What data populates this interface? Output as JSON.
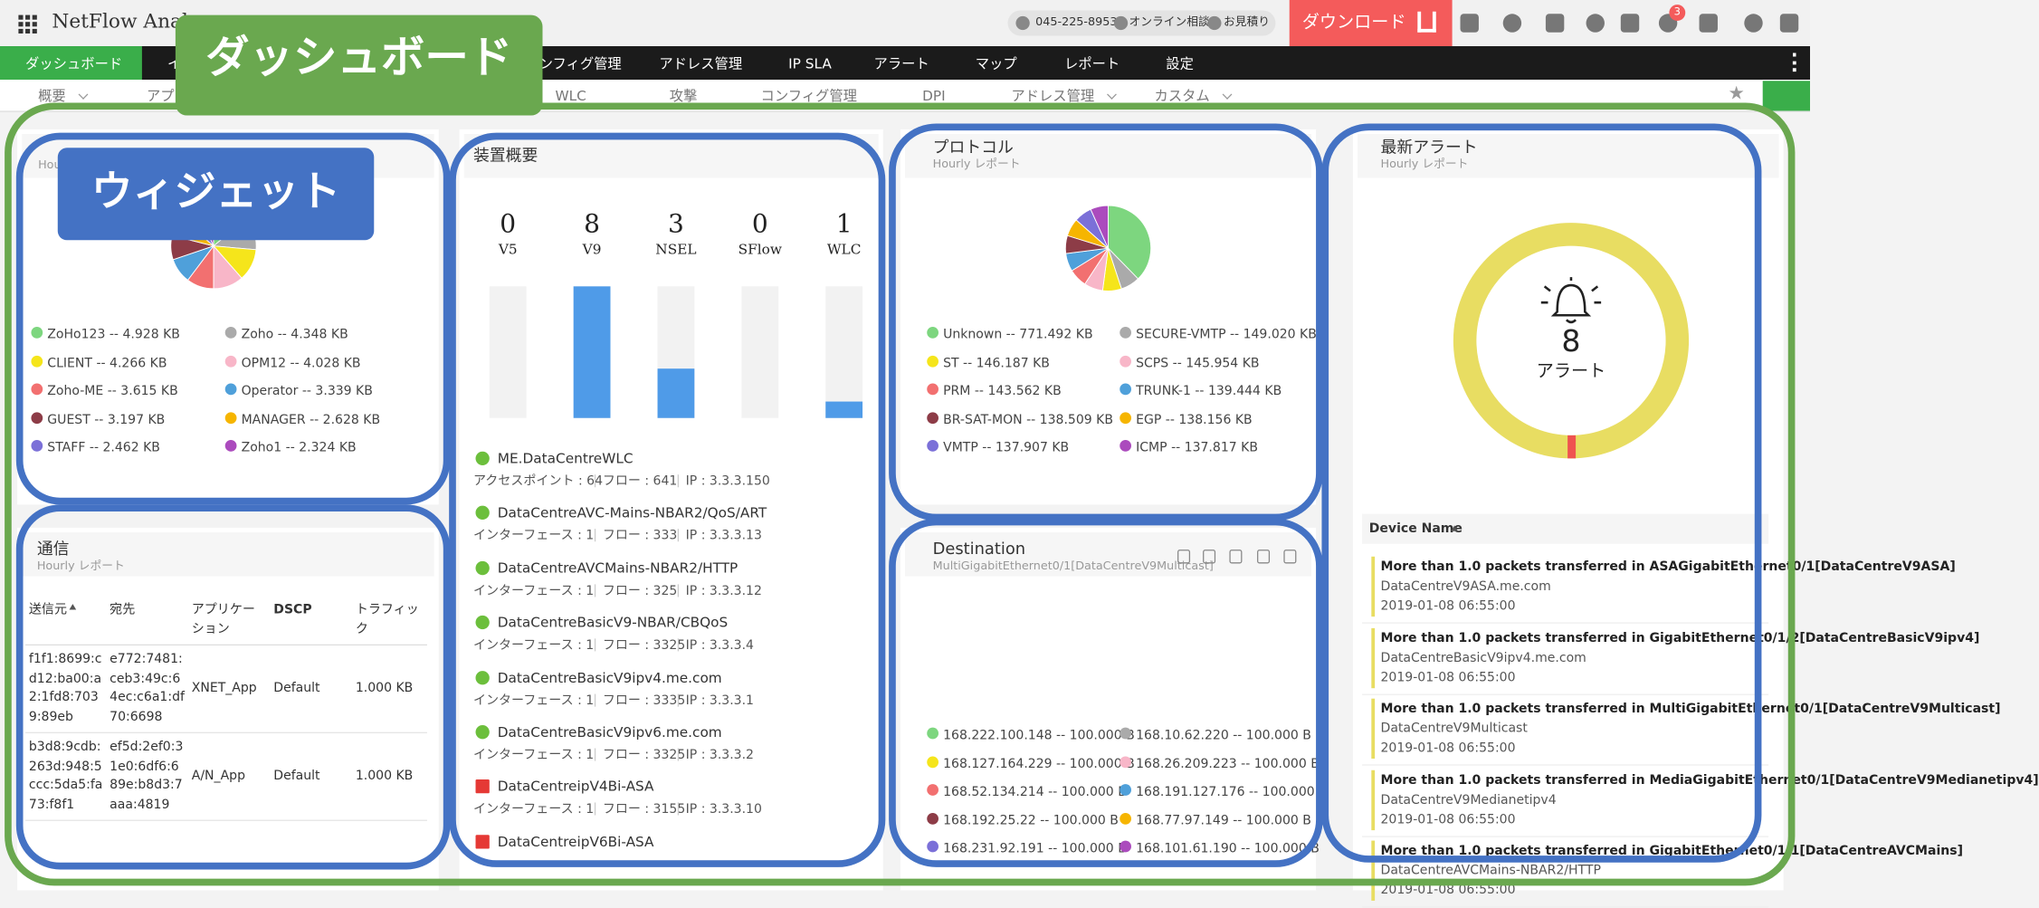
{
  "header": {
    "brand": "NetFlow Analyzer",
    "phone": "045-225-8953",
    "consult": "オンライン相談",
    "quote": "お見積り",
    "download": "ダウンロード",
    "badge": 3
  },
  "nav": [
    "ダッシュボード",
    "インベントリ",
    "コンフィグ管理",
    "アドレス管理",
    "IP SLA",
    "アラート",
    "マップ",
    "レポート",
    "設定"
  ],
  "subnav": [
    "概要",
    "アプリケーション",
    "WLC",
    "攻撃",
    "コンフィグ管理",
    "DPI",
    "アドレス管理",
    "カスタム"
  ],
  "callouts": {
    "dashboard": "ダッシュボード",
    "widget": "ウィジェット"
  },
  "widgets": {
    "application": {
      "subtitle": "Hourly レポート",
      "series": [
        {
          "name": "ZoHo123 -- 4.928 KB",
          "color": "#7dd67f",
          "value": 4.928
        },
        {
          "name": "Zoho -- 4.348 KB",
          "color": "#aaaaaa",
          "value": 4.348
        },
        {
          "name": "CLIENT -- 4.266 KB",
          "color": "#f5e51b",
          "value": 4.266
        },
        {
          "name": "OPM12 -- 4.028 KB",
          "color": "#f8b6c8",
          "value": 4.028
        },
        {
          "name": "Zoho-ME -- 3.615 KB",
          "color": "#f27070",
          "value": 3.615
        },
        {
          "name": "Operator -- 3.339 KB",
          "color": "#4fa0da",
          "value": 3.339
        },
        {
          "name": "GUEST -- 3.197 KB",
          "color": "#8d3c47",
          "value": 3.197
        },
        {
          "name": "MANAGER -- 2.628 KB",
          "color": "#f6b500",
          "value": 2.628
        },
        {
          "name": "STAFF -- 2.462 KB",
          "color": "#7b70d8",
          "value": 2.462
        },
        {
          "name": "Zoho1 -- 2.324 KB",
          "color": "#ab4bbd",
          "value": 2.324
        }
      ]
    },
    "devices": {
      "title": "装置概要",
      "ylim": [
        0,
        8
      ],
      "counts": [
        {
          "label": "V5",
          "value": 0
        },
        {
          "label": "V9",
          "value": 8
        },
        {
          "label": "NSEL",
          "value": 3
        },
        {
          "label": "SFlow",
          "value": 0
        },
        {
          "label": "WLC",
          "value": 1
        }
      ],
      "list": [
        {
          "name": "ME.DataCentreWLC",
          "icon": "globe",
          "detail": [
            "アクセスポイント : 64",
            "フロー : 641",
            "IP : 3.3.3.150"
          ]
        },
        {
          "name": "DataCentreAVC-Mains-NBAR2/QoS/ART",
          "icon": "globe",
          "detail": [
            "インターフェース : 1",
            "フロー : 333",
            "IP : 3.3.3.13"
          ]
        },
        {
          "name": "DataCentreAVCMains-NBAR2/HTTP",
          "icon": "globe",
          "detail": [
            "インターフェース : 1",
            "フロー : 325",
            "IP : 3.3.3.12"
          ]
        },
        {
          "name": "DataCentreBasicV9-NBAR/CBQoS",
          "icon": "globe",
          "detail": [
            "インターフェース : 1",
            "フロー : 3325",
            "IP : 3.3.3.4"
          ]
        },
        {
          "name": "DataCentreBasicV9ipv4.me.com",
          "icon": "globe",
          "detail": [
            "インターフェース : 1",
            "フロー : 3335",
            "IP : 3.3.3.1"
          ]
        },
        {
          "name": "DataCentreBasicV9ipv6.me.com",
          "icon": "globe",
          "detail": [
            "インターフェース : 1",
            "フロー : 3325",
            "IP : 3.3.3.2"
          ]
        },
        {
          "name": "DataCentreipV4Bi-ASA",
          "icon": "firewall",
          "detail": [
            "インターフェース : 1",
            "フロー : 3155",
            "IP : 3.3.3.10"
          ]
        },
        {
          "name": "DataCentreipV6Bi-ASA",
          "icon": "firewall",
          "detail": []
        }
      ]
    },
    "protocol": {
      "title": "プロトコル",
      "subtitle": "Hourly レポート",
      "series": [
        {
          "name": "Unknown -- 771.492 KB",
          "color": "#7dd67f",
          "value": 771.492
        },
        {
          "name": "SECURE-VMTP -- 149.020 KB",
          "color": "#aaaaaa",
          "value": 149.02
        },
        {
          "name": "ST -- 146.187 KB",
          "color": "#f5e51b",
          "value": 146.187
        },
        {
          "name": "SCPS -- 145.954 KB",
          "color": "#f8b6c8",
          "value": 145.954
        },
        {
          "name": "PRM -- 143.562 KB",
          "color": "#f27070",
          "value": 143.562
        },
        {
          "name": "TRUNK-1 -- 139.444 KB",
          "color": "#4fa0da",
          "value": 139.444
        },
        {
          "name": "BR-SAT-MON -- 138.509 KB",
          "color": "#8d3c47",
          "value": 138.509
        },
        {
          "name": "EGP -- 138.156 KB",
          "color": "#f6b500",
          "value": 138.156
        },
        {
          "name": "VMTP -- 137.907 KB",
          "color": "#7b70d8",
          "value": 137.907
        },
        {
          "name": "ICMP -- 137.817 KB",
          "color": "#ab4bbd",
          "value": 137.817
        }
      ]
    },
    "alerts": {
      "title": "最新アラート",
      "subtitle": "Hourly レポート",
      "count": 8,
      "count_label": "アラート",
      "column": "Device Name",
      "items": [
        {
          "message": "More than 1.0 packets transferred in ASAGigabitEthernet0/1[DataCentreV9ASA]",
          "device": "DataCentreV9ASA.me.com",
          "time": "2019-01-08 06:55:00"
        },
        {
          "message": "More than 1.0 packets transferred in GigabitEthernet0/1/2[DataCentreBasicV9ipv4]",
          "device": "DataCentreBasicV9ipv4.me.com",
          "time": "2019-01-08 06:55:00"
        },
        {
          "message": "More than 1.0 packets transferred in MultiGigabitEthernet0/1[DataCentreV9Multicast]",
          "device": "DataCentreV9Multicast",
          "time": "2019-01-08 06:55:00"
        },
        {
          "message": "More than 1.0 packets transferred in MediaGigabitEthernet0/1[DataCentreV9Medianetipv4]",
          "device": "DataCentreV9Medianetipv4",
          "time": "2019-01-08 06:55:00"
        },
        {
          "message": "More than 1.0 packets transferred in GigabitEthernet0/1/1[DataCentreAVCMains]",
          "device": "DataCentreAVCMains-NBAR2/HTTP",
          "time": "2019-01-08 06:55:00"
        }
      ]
    },
    "traffic": {
      "title": "通信",
      "subtitle": "Hourly レポート",
      "columns": [
        "送信元",
        "宛先",
        "アプリケーション",
        "DSCP",
        "トラフィック"
      ],
      "rows": [
        [
          "f1f1:8699:cd12:ba00:a2:1fd8:7039:89eb",
          "e772:7481:ceb3:49c:64ec:c6a1:df70:6698",
          "XNET_App",
          "Default",
          "1.000 KB"
        ],
        [
          "b3d8:9cdb:263d:948:5ccc:5da5:fa73:f8f1",
          "ef5d:2ef0:31e0:6df6:689e:b8d3:7aaa:4819",
          "A/N_App",
          "Default",
          "1.000 KB"
        ]
      ]
    },
    "destination": {
      "title": "Destination",
      "subtitle": "MultiGigabitEthernet0/1[DataCentreV9Multicast]",
      "series": [
        {
          "name": "168.222.100.148 -- 100.000 B",
          "color": "#7dd67f"
        },
        {
          "name": "168.10.62.220 -- 100.000 B",
          "color": "#aaaaaa"
        },
        {
          "name": "168.127.164.229 -- 100.000 B",
          "color": "#f5e51b"
        },
        {
          "name": "168.26.209.223 -- 100.000 B",
          "color": "#f8b6c8"
        },
        {
          "name": "168.52.134.214 -- 100.000 B",
          "color": "#f27070"
        },
        {
          "name": "168.191.127.176 -- 100.000 B",
          "color": "#4fa0da"
        },
        {
          "name": "168.192.25.22 -- 100.000 B",
          "color": "#8d3c47"
        },
        {
          "name": "168.77.97.149 -- 100.000 B",
          "color": "#f6b500"
        },
        {
          "name": "168.231.92.191 -- 100.000 B",
          "color": "#7b70d8"
        },
        {
          "name": "168.101.61.190 -- 100.000 B",
          "color": "#ab4bbd"
        }
      ]
    }
  }
}
